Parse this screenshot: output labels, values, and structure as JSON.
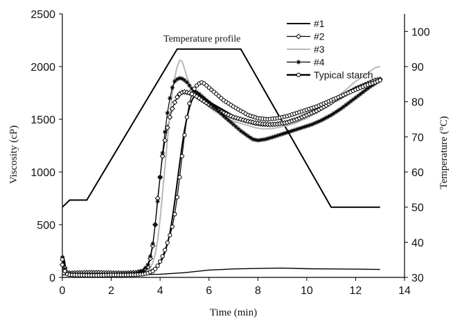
{
  "chart_data": {
    "type": "line",
    "title": "",
    "xlabel": "Time (min)",
    "ylabel": "Viscosity (cP)",
    "y2label": "Temperature (°C)",
    "xlim": [
      0,
      14
    ],
    "ylim": [
      0,
      2500
    ],
    "y2lim": [
      30,
      105
    ],
    "x_ticks": [
      "0",
      "2",
      "4",
      "6",
      "8",
      "10",
      "12",
      "14"
    ],
    "y_ticks": [
      "0",
      "500",
      "1000",
      "1500",
      "2000",
      "2500"
    ],
    "y2_ticks": [
      "30",
      "40",
      "50",
      "60",
      "70",
      "80",
      "90",
      "100"
    ],
    "annotation": "Temperature profile",
    "legend_position": "top-right",
    "grid": false,
    "series": [
      {
        "name": "#1",
        "marker": "none",
        "stroke": "#000000",
        "x": [
          0.0,
          0.05,
          0.1,
          0.15,
          0.2,
          0.3,
          0.5,
          1.0,
          1.5,
          2.0,
          2.5,
          3.0,
          3.3,
          3.5,
          3.6,
          3.7,
          3.8,
          3.9,
          4.0,
          4.1,
          4.2,
          4.3,
          4.4,
          4.5,
          4.6,
          4.7,
          4.8,
          4.9,
          5.0,
          5.1,
          5.2,
          5.3,
          5.4,
          5.5,
          5.6,
          5.7,
          5.8,
          6.0,
          6.2,
          6.5,
          6.8,
          7.0,
          7.3,
          7.6,
          7.9,
          8.2,
          8.5,
          8.8,
          9.2,
          9.6,
          10.0,
          10.4,
          10.8,
          11.2,
          11.6,
          12.0,
          12.4,
          12.8,
          13.0
        ],
        "values": [
          150,
          190,
          140,
          60,
          40,
          35,
          30,
          25,
          25,
          25,
          30,
          35,
          45,
          55,
          65,
          75,
          90,
          110,
          140,
          180,
          240,
          320,
          420,
          560,
          720,
          900,
          1080,
          1250,
          1400,
          1520,
          1610,
          1680,
          1720,
          1740,
          1735,
          1720,
          1700,
          1670,
          1640,
          1600,
          1560,
          1530,
          1500,
          1470,
          1450,
          1440,
          1440,
          1450,
          1470,
          1500,
          1540,
          1590,
          1640,
          1690,
          1740,
          1780,
          1820,
          1860,
          1880
        ]
      },
      {
        "name": "#2",
        "marker": "diamond",
        "stroke": "#000000",
        "x": [
          0.0,
          0.05,
          0.1,
          0.15,
          0.2,
          0.3,
          0.5,
          1.0,
          1.5,
          2.0,
          2.5,
          3.0,
          3.3,
          3.5,
          3.6,
          3.7,
          3.8,
          3.9,
          4.0,
          4.1,
          4.2,
          4.3,
          4.4,
          4.5,
          4.6,
          4.7,
          4.8,
          4.9,
          5.0,
          5.2,
          5.4,
          5.6,
          5.8,
          6.0,
          6.2,
          6.5,
          6.8,
          7.0,
          7.3,
          7.6,
          7.9,
          8.2,
          8.5,
          8.8,
          9.2,
          9.6,
          10.0,
          10.4,
          10.8,
          11.2,
          11.6,
          12.0,
          12.4,
          12.8,
          13.0
        ],
        "values": [
          120,
          160,
          90,
          50,
          45,
          40,
          42,
          45,
          45,
          42,
          40,
          45,
          60,
          100,
          180,
          300,
          500,
          750,
          950,
          1150,
          1300,
          1420,
          1520,
          1600,
          1660,
          1710,
          1740,
          1755,
          1760,
          1750,
          1730,
          1700,
          1670,
          1640,
          1610,
          1570,
          1540,
          1520,
          1500,
          1480,
          1465,
          1455,
          1450,
          1455,
          1470,
          1500,
          1540,
          1580,
          1630,
          1690,
          1740,
          1790,
          1830,
          1870,
          1880
        ]
      },
      {
        "name": "#3",
        "marker": "none",
        "stroke": "#b8b8b8",
        "x": [
          0.0,
          0.05,
          0.1,
          0.15,
          0.2,
          0.3,
          0.5,
          1.0,
          1.5,
          2.0,
          2.5,
          3.0,
          3.3,
          3.5,
          3.6,
          3.7,
          3.8,
          3.9,
          4.0,
          4.1,
          4.2,
          4.3,
          4.4,
          4.5,
          4.6,
          4.7,
          4.8,
          4.9,
          5.0,
          5.1,
          5.2,
          5.3,
          5.4,
          5.5,
          5.6,
          5.7,
          5.8,
          6.0,
          6.2,
          6.5,
          6.8,
          7.0,
          7.3,
          7.6,
          7.9,
          8.2,
          8.5,
          8.8,
          9.2,
          9.6,
          10.0,
          10.4,
          10.8,
          11.2,
          11.6,
          12.0,
          12.4,
          12.8,
          13.0
        ],
        "values": [
          100,
          130,
          60,
          40,
          35,
          30,
          30,
          30,
          30,
          28,
          30,
          32,
          40,
          60,
          90,
          140,
          220,
          350,
          550,
          800,
          1050,
          1300,
          1550,
          1750,
          1900,
          2000,
          2060,
          2050,
          1980,
          1900,
          1830,
          1780,
          1760,
          1750,
          1720,
          1690,
          1660,
          1620,
          1580,
          1540,
          1500,
          1480,
          1460,
          1440,
          1420,
          1410,
          1410,
          1420,
          1440,
          1470,
          1510,
          1560,
          1620,
          1700,
          1780,
          1860,
          1920,
          1990,
          2000
        ]
      },
      {
        "name": "#4",
        "marker": "asterisk",
        "stroke": "#000000",
        "x": [
          0.0,
          0.05,
          0.1,
          0.15,
          0.2,
          0.3,
          0.5,
          1.0,
          1.5,
          2.0,
          2.5,
          3.0,
          3.3,
          3.5,
          3.6,
          3.7,
          3.8,
          3.9,
          4.0,
          4.1,
          4.2,
          4.3,
          4.4,
          4.5,
          4.6,
          4.7,
          4.8,
          4.9,
          5.0,
          5.1,
          5.2,
          5.3,
          5.4,
          5.6,
          5.8,
          6.0,
          6.3,
          6.6,
          7.0,
          7.3,
          7.6,
          7.8,
          8.0,
          8.3,
          8.6,
          9.0,
          9.4,
          9.8,
          10.2,
          10.6,
          11.0,
          11.4,
          11.8,
          12.2,
          12.6,
          13.0
        ],
        "values": [
          190,
          170,
          80,
          40,
          35,
          30,
          28,
          28,
          28,
          28,
          30,
          35,
          60,
          120,
          200,
          320,
          500,
          720,
          950,
          1180,
          1380,
          1560,
          1700,
          1800,
          1860,
          1880,
          1890,
          1885,
          1870,
          1850,
          1820,
          1790,
          1770,
          1740,
          1700,
          1660,
          1600,
          1530,
          1450,
          1390,
          1340,
          1310,
          1300,
          1310,
          1330,
          1360,
          1390,
          1420,
          1450,
          1490,
          1540,
          1600,
          1670,
          1740,
          1810,
          1870
        ]
      },
      {
        "name": "Typical starch",
        "marker": "circle",
        "stroke": "#000000",
        "x": [
          0.0,
          0.05,
          0.1,
          0.15,
          0.2,
          0.3,
          0.5,
          1.0,
          1.5,
          2.0,
          2.5,
          3.0,
          3.3,
          3.5,
          3.7,
          3.8,
          3.9,
          4.0,
          4.1,
          4.2,
          4.3,
          4.4,
          4.5,
          4.6,
          4.7,
          4.8,
          4.9,
          5.0,
          5.1,
          5.2,
          5.3,
          5.4,
          5.5,
          5.6,
          5.7,
          5.8,
          6.0,
          6.3,
          6.6,
          7.0,
          7.3,
          7.6,
          8.0,
          8.4,
          8.8,
          9.2,
          9.6,
          10.0,
          10.4,
          10.8,
          11.2,
          11.6,
          12.0,
          12.4,
          12.8,
          13.0
        ],
        "values": [
          170,
          120,
          60,
          40,
          30,
          25,
          22,
          20,
          20,
          22,
          22,
          25,
          30,
          40,
          60,
          80,
          110,
          150,
          200,
          260,
          330,
          400,
          480,
          600,
          760,
          950,
          1150,
          1350,
          1520,
          1650,
          1740,
          1790,
          1820,
          1840,
          1850,
          1840,
          1800,
          1740,
          1680,
          1620,
          1580,
          1540,
          1510,
          1500,
          1510,
          1530,
          1560,
          1590,
          1620,
          1660,
          1700,
          1740,
          1780,
          1820,
          1850,
          1870
        ]
      }
    ],
    "temperature_profile": {
      "name": "Temperature profile",
      "axis": "right",
      "x": [
        0.0,
        0.3,
        0.6,
        1.0,
        4.7,
        7.3,
        11.0,
        13.0
      ],
      "values": [
        50,
        52,
        52,
        52,
        95,
        95,
        50,
        50
      ]
    },
    "baseline_trace": {
      "x": [
        0.0,
        1.0,
        2.0,
        3.0,
        4.0,
        5.0,
        6.0,
        7.0,
        8.0,
        9.0,
        10.0,
        11.0,
        12.0,
        13.0
      ],
      "values": [
        25,
        22,
        22,
        25,
        30,
        45,
        70,
        80,
        85,
        88,
        82,
        80,
        78,
        75
      ]
    }
  }
}
